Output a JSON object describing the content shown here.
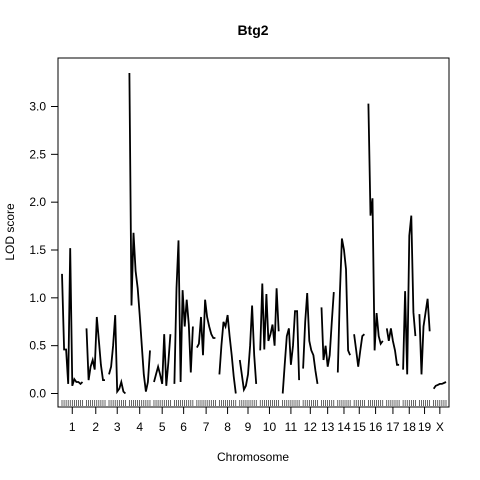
{
  "chart_data": {
    "type": "line",
    "title": "Btg2",
    "xlabel": "Chromosome",
    "ylabel": "LOD score",
    "ylim": [
      -0.15,
      3.5
    ],
    "y_ticks": [
      0.0,
      0.5,
      1.0,
      1.5,
      2.0,
      2.5,
      3.0
    ],
    "y_tick_labels": [
      "0.0",
      "0.5",
      "1.0",
      "1.5",
      "2.0",
      "2.5",
      "3.0"
    ],
    "grid": false,
    "line_color": "#000000",
    "chromosomes": [
      {
        "label": "1",
        "x": [
          0,
          4,
          8,
          12,
          16,
          20,
          24,
          28,
          32,
          36,
          40
        ],
        "y": [
          1.25,
          0.46,
          0.46,
          0.1,
          1.52,
          0.08,
          0.15,
          0.12,
          0.12,
          0.1,
          0.12
        ]
      },
      {
        "label": "2",
        "x": [
          0,
          4,
          8,
          12,
          16,
          20,
          24,
          28,
          32,
          36
        ],
        "y": [
          0.68,
          0.14,
          0.28,
          0.35,
          0.25,
          0.8,
          0.55,
          0.3,
          0.14,
          0.14
        ]
      },
      {
        "label": "3",
        "x": [
          0,
          4,
          8,
          12,
          16,
          20,
          24,
          28,
          32
        ],
        "y": [
          0.2,
          0.28,
          0.5,
          0.82,
          0.02,
          0.05,
          0.12,
          0.02,
          0.0
        ]
      },
      {
        "label": "4",
        "x": [
          0,
          4,
          8,
          12,
          16,
          20,
          24,
          28,
          32,
          36,
          40
        ],
        "y": [
          3.35,
          0.92,
          1.68,
          1.28,
          1.1,
          0.82,
          0.5,
          0.2,
          0.02,
          0.12,
          0.45
        ]
      },
      {
        "label": "5",
        "x": [
          0,
          4,
          8,
          12,
          16,
          20,
          24,
          28,
          32
        ],
        "y": [
          0.12,
          0.2,
          0.28,
          0.2,
          0.1,
          0.62,
          0.08,
          0.32,
          0.62
        ]
      },
      {
        "label": "6",
        "x": [
          0,
          4,
          8,
          12,
          16,
          20,
          24,
          28,
          32,
          36
        ],
        "y": [
          0.1,
          1.1,
          1.6,
          0.12,
          1.08,
          0.7,
          0.98,
          0.72,
          0.22,
          0.7
        ]
      },
      {
        "label": "7",
        "x": [
          0,
          4,
          8,
          12,
          16,
          20,
          24,
          28,
          32,
          36
        ],
        "y": [
          0.48,
          0.52,
          0.8,
          0.4,
          0.98,
          0.8,
          0.7,
          0.62,
          0.58,
          0.58
        ]
      },
      {
        "label": "8",
        "x": [
          0,
          4,
          8,
          12,
          16,
          20,
          24,
          28,
          32
        ],
        "y": [
          0.2,
          0.5,
          0.75,
          0.7,
          0.82,
          0.6,
          0.4,
          0.18,
          0.0
        ]
      },
      {
        "label": "9",
        "x": [
          0,
          4,
          8,
          12,
          16,
          20,
          24,
          28,
          32
        ],
        "y": [
          0.35,
          0.2,
          0.04,
          0.08,
          0.2,
          0.5,
          0.92,
          0.4,
          0.1
        ]
      },
      {
        "label": "10",
        "x": [
          0,
          4,
          8,
          12,
          16,
          20,
          24,
          28,
          32,
          36
        ],
        "y": [
          0.45,
          1.15,
          0.46,
          1.04,
          0.55,
          0.62,
          0.72,
          0.5,
          1.1,
          0.65
        ]
      },
      {
        "label": "11",
        "x": [
          0,
          4,
          8,
          12,
          16,
          20,
          24,
          28,
          32
        ],
        "y": [
          0.0,
          0.3,
          0.6,
          0.68,
          0.3,
          0.5,
          0.86,
          0.86,
          0.14
        ]
      },
      {
        "label": "12",
        "x": [
          0,
          4,
          8,
          12,
          16,
          20,
          24,
          28
        ],
        "y": [
          0.26,
          0.75,
          1.05,
          0.55,
          0.45,
          0.4,
          0.24,
          0.1
        ]
      },
      {
        "label": "13",
        "x": [
          0,
          4,
          8,
          12,
          16,
          20,
          24
        ],
        "y": [
          0.9,
          0.35,
          0.5,
          0.28,
          0.4,
          0.75,
          1.06
        ]
      },
      {
        "label": "14",
        "x": [
          0,
          4,
          8,
          12,
          16,
          20,
          24
        ],
        "y": [
          0.22,
          1.05,
          1.62,
          1.5,
          1.3,
          0.45,
          0.4
        ]
      },
      {
        "label": "15",
        "x": [
          0,
          4,
          8,
          12,
          16,
          20
        ],
        "y": [
          0.62,
          0.45,
          0.28,
          0.45,
          0.6,
          0.62
        ]
      },
      {
        "label": "16",
        "x": [
          0,
          4,
          8,
          12,
          16,
          20,
          24,
          28
        ],
        "y": [
          3.03,
          1.86,
          2.04,
          0.45,
          0.84,
          0.6,
          0.52,
          0.55
        ]
      },
      {
        "label": "17",
        "x": [
          0,
          4,
          8,
          12,
          16,
          20,
          24
        ],
        "y": [
          0.68,
          0.55,
          0.68,
          0.55,
          0.45,
          0.3,
          0.3
        ]
      },
      {
        "label": "18",
        "x": [
          0,
          4,
          8,
          12,
          16,
          20,
          24
        ],
        "y": [
          0.25,
          1.07,
          0.2,
          1.65,
          1.86,
          0.85,
          0.6
        ]
      },
      {
        "label": "19",
        "x": [
          0,
          4,
          8,
          12,
          16,
          20
        ],
        "y": [
          0.83,
          0.2,
          0.7,
          0.85,
          0.99,
          0.65
        ]
      },
      {
        "label": "X",
        "x": [
          0,
          4,
          8,
          12,
          16,
          20,
          24
        ],
        "y": [
          0.05,
          0.08,
          0.09,
          0.1,
          0.1,
          0.11,
          0.12
        ]
      }
    ]
  }
}
